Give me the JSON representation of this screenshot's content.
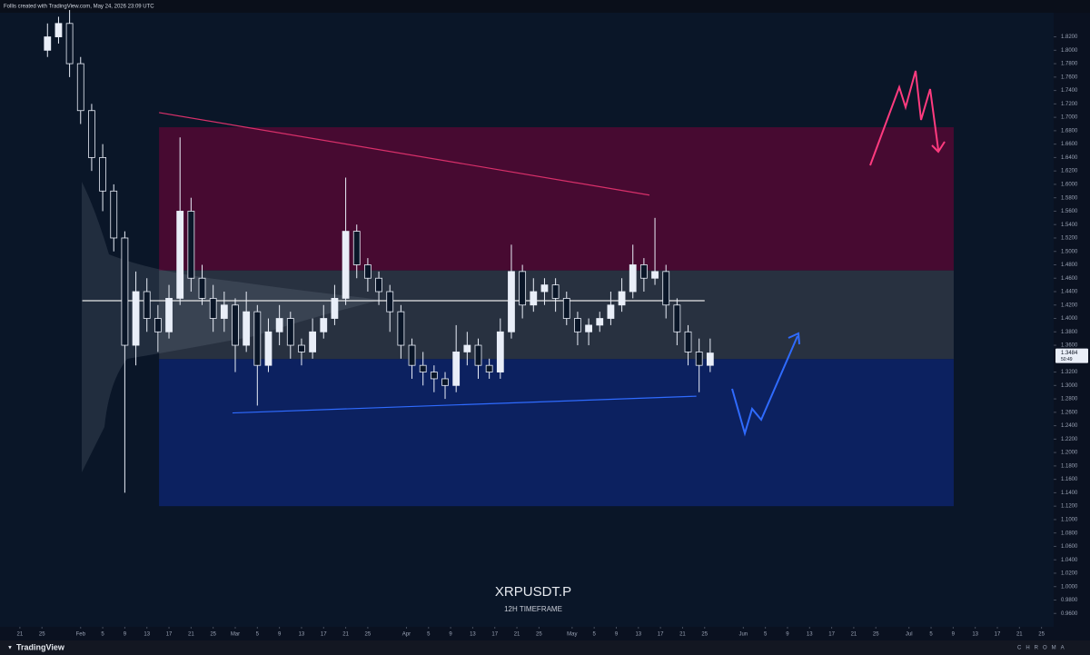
{
  "header": {
    "credit": "Follis created with TradingView.com, May 24, 2026 23:09 UTC"
  },
  "footer": {
    "brand": "TradingView",
    "tag": "CHROMA"
  },
  "chart_data": {
    "type": "candlestick",
    "title": "XRPUSDT.P",
    "subtitle": "12H TIMEFRAME",
    "countdown": "50:49",
    "color": "#e9eef8",
    "grid": false,
    "x": [
      26,
      28,
      30,
      32,
      34,
      36,
      38,
      40,
      42,
      44,
      46,
      48,
      50,
      52,
      54,
      56,
      58,
      60,
      62,
      64,
      66,
      68,
      70,
      72,
      74,
      76,
      78,
      80,
      82,
      84,
      86,
      88,
      90,
      92,
      94,
      96,
      98,
      100,
      102,
      104,
      106,
      108,
      110,
      112,
      114,
      116,
      118,
      120,
      122,
      124,
      126,
      128,
      130,
      132,
      134,
      136,
      138,
      140,
      142,
      144,
      146
    ],
    "open": [
      1.8,
      1.82,
      1.84,
      1.78,
      1.71,
      1.64,
      1.59,
      1.52,
      1.36,
      1.44,
      1.4,
      1.38,
      1.43,
      1.56,
      1.46,
      1.43,
      1.4,
      1.42,
      1.36,
      1.41,
      1.33,
      1.38,
      1.4,
      1.36,
      1.35,
      1.38,
      1.4,
      1.43,
      1.53,
      1.48,
      1.46,
      1.44,
      1.41,
      1.36,
      1.33,
      1.32,
      1.31,
      1.3,
      1.35,
      1.36,
      1.33,
      1.32,
      1.38,
      1.47,
      1.42,
      1.44,
      1.45,
      1.43,
      1.4,
      1.38,
      1.39,
      1.4,
      1.42,
      1.44,
      1.48,
      1.46,
      1.47,
      1.42,
      1.38,
      1.35,
      1.33
    ],
    "high": [
      1.84,
      1.85,
      1.86,
      1.79,
      1.72,
      1.66,
      1.6,
      1.53,
      1.47,
      1.46,
      1.42,
      1.45,
      1.67,
      1.58,
      1.48,
      1.45,
      1.44,
      1.43,
      1.44,
      1.42,
      1.4,
      1.42,
      1.41,
      1.37,
      1.4,
      1.42,
      1.45,
      1.61,
      1.54,
      1.49,
      1.47,
      1.45,
      1.42,
      1.37,
      1.35,
      1.33,
      1.32,
      1.39,
      1.38,
      1.37,
      1.34,
      1.4,
      1.51,
      1.48,
      1.46,
      1.46,
      1.46,
      1.44,
      1.41,
      1.4,
      1.41,
      1.44,
      1.46,
      1.51,
      1.49,
      1.55,
      1.48,
      1.43,
      1.39,
      1.37,
      1.37
    ],
    "low": [
      1.79,
      1.81,
      1.76,
      1.69,
      1.62,
      1.56,
      1.5,
      1.14,
      1.33,
      1.38,
      1.35,
      1.37,
      1.42,
      1.44,
      1.42,
      1.38,
      1.38,
      1.32,
      1.35,
      1.27,
      1.32,
      1.36,
      1.34,
      1.33,
      1.34,
      1.37,
      1.39,
      1.42,
      1.46,
      1.44,
      1.42,
      1.38,
      1.34,
      1.31,
      1.3,
      1.29,
      1.28,
      1.29,
      1.33,
      1.31,
      1.31,
      1.31,
      1.37,
      1.4,
      1.41,
      1.42,
      1.41,
      1.39,
      1.36,
      1.36,
      1.38,
      1.39,
      1.41,
      1.43,
      1.44,
      1.45,
      1.4,
      1.36,
      1.33,
      1.29,
      1.32
    ],
    "close": [
      1.82,
      1.84,
      1.78,
      1.71,
      1.64,
      1.59,
      1.52,
      1.36,
      1.44,
      1.4,
      1.38,
      1.43,
      1.56,
      1.46,
      1.43,
      1.4,
      1.42,
      1.36,
      1.41,
      1.33,
      1.38,
      1.4,
      1.36,
      1.35,
      1.38,
      1.4,
      1.43,
      1.53,
      1.48,
      1.46,
      1.44,
      1.41,
      1.36,
      1.33,
      1.32,
      1.31,
      1.3,
      1.35,
      1.36,
      1.33,
      1.32,
      1.38,
      1.47,
      1.42,
      1.44,
      1.45,
      1.43,
      1.4,
      1.38,
      1.39,
      1.4,
      1.42,
      1.44,
      1.48,
      1.46,
      1.47,
      1.42,
      1.38,
      1.35,
      1.33,
      1.3484
    ],
    "xlim": [
      17.4,
      208.2
    ],
    "xticks": [
      {
        "value": 21,
        "label": "21"
      },
      {
        "value": 25,
        "label": "25"
      },
      {
        "value": 32,
        "label": "Feb"
      },
      {
        "value": 36,
        "label": "5"
      },
      {
        "value": 40,
        "label": "9"
      },
      {
        "value": 44,
        "label": "13"
      },
      {
        "value": 48,
        "label": "17"
      },
      {
        "value": 52,
        "label": "21"
      },
      {
        "value": 56,
        "label": "25"
      },
      {
        "value": 60,
        "label": "Mar"
      },
      {
        "value": 64,
        "label": "5"
      },
      {
        "value": 68,
        "label": "9"
      },
      {
        "value": 72,
        "label": "13"
      },
      {
        "value": 76,
        "label": "17"
      },
      {
        "value": 80,
        "label": "21"
      },
      {
        "value": 84,
        "label": "25"
      },
      {
        "value": 91,
        "label": "Apr"
      },
      {
        "value": 95,
        "label": "5"
      },
      {
        "value": 99,
        "label": "9"
      },
      {
        "value": 103,
        "label": "13"
      },
      {
        "value": 107,
        "label": "17"
      },
      {
        "value": 111,
        "label": "21"
      },
      {
        "value": 115,
        "label": "25"
      },
      {
        "value": 121,
        "label": "May"
      },
      {
        "value": 125,
        "label": "5"
      },
      {
        "value": 129,
        "label": "9"
      },
      {
        "value": 133,
        "label": "13"
      },
      {
        "value": 137,
        "label": "17"
      },
      {
        "value": 141,
        "label": "21"
      },
      {
        "value": 145,
        "label": "25"
      },
      {
        "value": 152,
        "label": "Jun"
      },
      {
        "value": 156,
        "label": "5"
      },
      {
        "value": 160,
        "label": "9"
      },
      {
        "value": 164,
        "label": "13"
      },
      {
        "value": 168,
        "label": "17"
      },
      {
        "value": 172,
        "label": "21"
      },
      {
        "value": 176,
        "label": "25"
      },
      {
        "value": 182,
        "label": "Jul"
      },
      {
        "value": 186,
        "label": "5"
      },
      {
        "value": 190,
        "label": "9"
      },
      {
        "value": 194,
        "label": "13"
      },
      {
        "value": 198,
        "label": "17"
      },
      {
        "value": 202,
        "label": "21"
      },
      {
        "value": 206,
        "label": "25"
      }
    ],
    "ylim": [
      0.94,
      1.856
    ],
    "yticks": [
      {
        "value": 0.96,
        "label": "0.9600"
      },
      {
        "value": 0.98,
        "label": "0.9800"
      },
      {
        "value": 1.0,
        "label": "1.0000"
      },
      {
        "value": 1.02,
        "label": "1.0200"
      },
      {
        "value": 1.04,
        "label": "1.0400"
      },
      {
        "value": 1.06,
        "label": "1.0600"
      },
      {
        "value": 1.08,
        "label": "1.0800"
      },
      {
        "value": 1.1,
        "label": "1.1000"
      },
      {
        "value": 1.12,
        "label": "1.1200"
      },
      {
        "value": 1.14,
        "label": "1.1400"
      },
      {
        "value": 1.16,
        "label": "1.1600"
      },
      {
        "value": 1.18,
        "label": "1.1800"
      },
      {
        "value": 1.2,
        "label": "1.2000"
      },
      {
        "value": 1.22,
        "label": "1.2200"
      },
      {
        "value": 1.24,
        "label": "1.2400"
      },
      {
        "value": 1.26,
        "label": "1.2600"
      },
      {
        "value": 1.28,
        "label": "1.2800"
      },
      {
        "value": 1.3,
        "label": "1.3000"
      },
      {
        "value": 1.32,
        "label": "1.3200"
      },
      {
        "value": 1.36,
        "label": "1.3600"
      },
      {
        "value": 1.38,
        "label": "1.3800"
      },
      {
        "value": 1.4,
        "label": "1.4000"
      },
      {
        "value": 1.42,
        "label": "1.4200"
      },
      {
        "value": 1.44,
        "label": "1.4400"
      },
      {
        "value": 1.46,
        "label": "1.4600"
      },
      {
        "value": 1.48,
        "label": "1.4800"
      },
      {
        "value": 1.5,
        "label": "1.5000"
      },
      {
        "value": 1.52,
        "label": "1.5200"
      },
      {
        "value": 1.54,
        "label": "1.5400"
      },
      {
        "value": 1.56,
        "label": "1.5600"
      },
      {
        "value": 1.58,
        "label": "1.5800"
      },
      {
        "value": 1.6,
        "label": "1.6000"
      },
      {
        "value": 1.62,
        "label": "1.6200"
      },
      {
        "value": 1.64,
        "label": "1.6400"
      },
      {
        "value": 1.66,
        "label": "1.6600"
      },
      {
        "value": 1.68,
        "label": "1.6800"
      },
      {
        "value": 1.7,
        "label": "1.7000"
      },
      {
        "value": 1.72,
        "label": "1.7200"
      },
      {
        "value": 1.74,
        "label": "1.7400"
      },
      {
        "value": 1.76,
        "label": "1.7600"
      },
      {
        "value": 1.78,
        "label": "1.7800"
      },
      {
        "value": 1.8,
        "label": "1.8000"
      },
      {
        "value": 1.82,
        "label": "1.8200"
      }
    ],
    "zones": [
      {
        "x": [
          46.2,
          190.1
        ],
        "y": [
          1.4715,
          1.6852
        ],
        "color": "#470a31"
      },
      {
        "x": [
          46.2,
          190.1
        ],
        "y": [
          1.3394,
          1.4715
        ],
        "color": "#283140"
      },
      {
        "x": [
          46.2,
          190.1
        ],
        "y": [
          1.12,
          1.3394
        ],
        "color": "#0c2160"
      }
    ],
    "lines": [
      {
        "x": [
          46.2,
          135
        ],
        "y": [
          1.707,
          1.584
        ],
        "color": "#d8306a"
      },
      {
        "x": [
          59.5,
          143.5
        ],
        "y": [
          1.259,
          1.284
        ],
        "color": "#2f6bff"
      },
      {
        "x": [
          32.3,
          145
        ],
        "y": [
          1.4265,
          1.4265
        ],
        "color": "#e8e8e8"
      }
    ]
  }
}
